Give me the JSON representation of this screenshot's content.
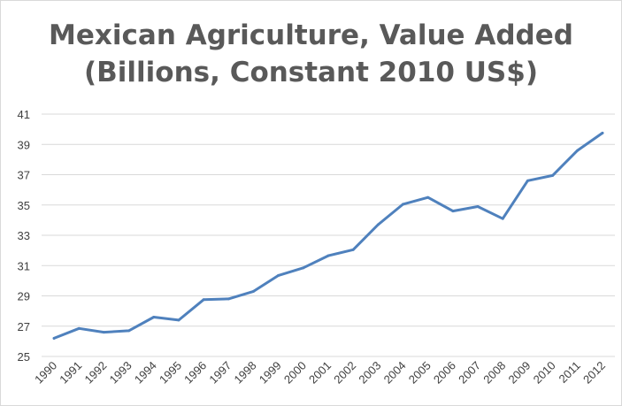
{
  "chart_data": {
    "type": "line",
    "title": "Mexican Agriculture, Value Added",
    "subtitle": "(Billions, Constant 2010 US$)",
    "xlabel": "",
    "ylabel": "",
    "ylim": [
      25,
      41
    ],
    "yticks": [
      "25",
      "27",
      "29",
      "31",
      "33",
      "35",
      "37",
      "39",
      "41"
    ],
    "categories": [
      "1990",
      "1991",
      "1992",
      "1993",
      "1994",
      "1995",
      "1996",
      "1997",
      "1998",
      "1999",
      "2000",
      "2001",
      "2002",
      "2003",
      "2004",
      "2005",
      "2006",
      "2007",
      "2008",
      "2009",
      "2010",
      "2011",
      "2012"
    ],
    "series": [
      {
        "values": [
          26.2,
          26.85,
          26.6,
          26.7,
          27.6,
          27.4,
          28.75,
          28.8,
          29.3,
          30.35,
          30.85,
          31.65,
          32.05,
          33.7,
          35.05,
          35.5,
          34.6,
          34.9,
          34.1,
          36.6,
          36.95,
          38.6,
          39.75
        ],
        "color": "#4f81bd"
      }
    ],
    "grid": true,
    "legend": "none"
  }
}
